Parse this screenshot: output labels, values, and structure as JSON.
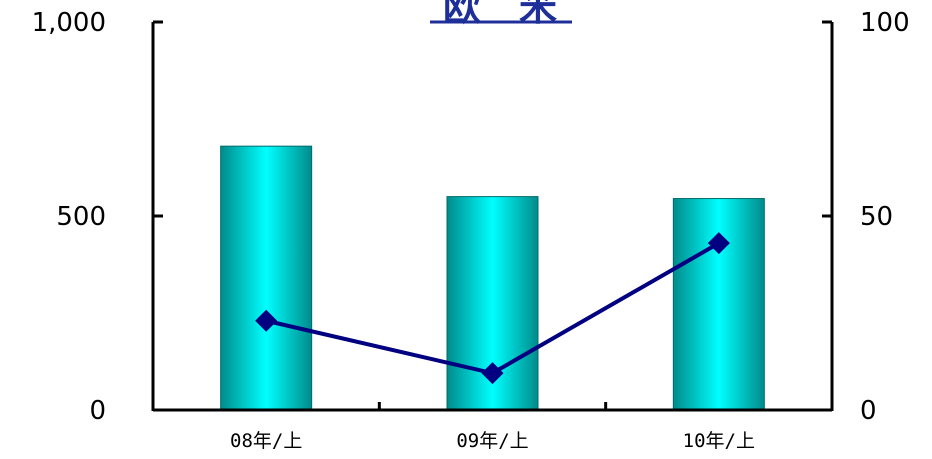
{
  "chart_data": {
    "type": "bar",
    "title": "欧　米",
    "categories": [
      "08年/上",
      "09年/上",
      "10年/上"
    ],
    "series": [
      {
        "name": "",
        "type": "bar",
        "axis": "left",
        "values": [
          680,
          550,
          545
        ]
      },
      {
        "name": "",
        "type": "line",
        "axis": "right",
        "values": [
          23,
          9.5,
          43
        ]
      }
    ],
    "y_left": {
      "ylim": [
        0,
        1000
      ],
      "ticks": [
        0,
        500,
        1000
      ],
      "tick_labels": [
        "0",
        "500",
        "1,000"
      ]
    },
    "y_right": {
      "ylim": [
        0,
        100
      ],
      "ticks": [
        0,
        50,
        100
      ],
      "tick_labels": [
        "0",
        "50",
        "100"
      ]
    },
    "grid": false,
    "legend": "none",
    "colors": {
      "bar": "#00e5e5",
      "bar_edge": "#006b6b",
      "line": "#000080",
      "title": "#1f2f9a"
    }
  }
}
